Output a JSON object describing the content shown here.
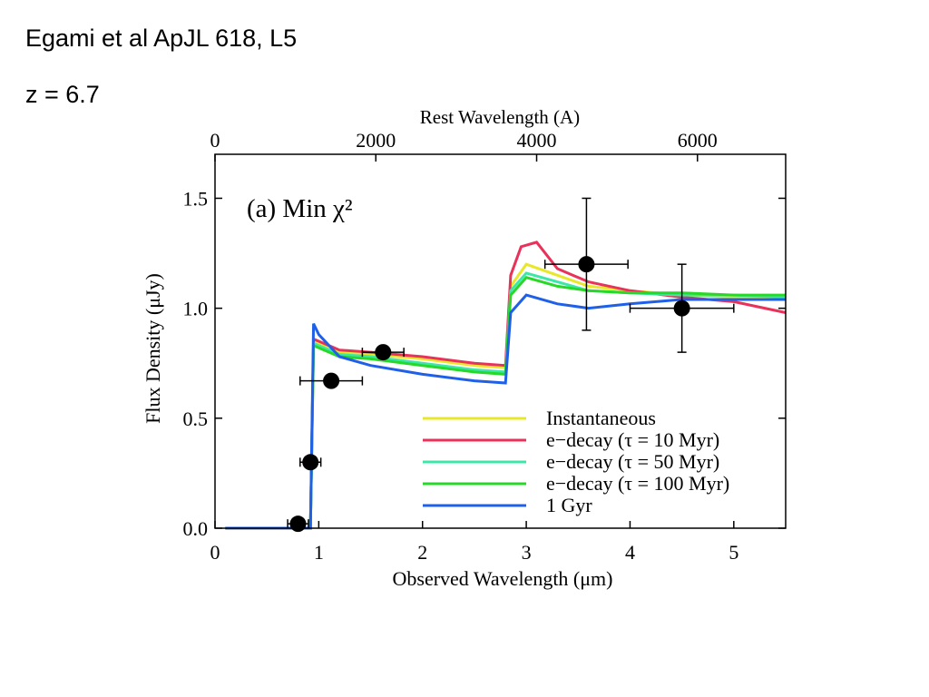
{
  "slide": {
    "reference": "Egami et al ApJL 618, L5",
    "redshift_label": "z = 6.7"
  },
  "chart_data": {
    "type": "line",
    "panel_label": "(a)  Min χ²",
    "xlabel": "Observed Wavelength (μm)",
    "ylabel": "Flux Density (μJy)",
    "top_xlabel": "Rest Wavelength (A)",
    "xlim": [
      0,
      5.5
    ],
    "ylim": [
      0,
      1.7
    ],
    "top_xlim": [
      0,
      7097
    ],
    "x_ticks": [
      0,
      1,
      2,
      3,
      4,
      5
    ],
    "y_ticks": [
      0.0,
      0.5,
      1.0,
      1.5
    ],
    "top_x_ticks": [
      0,
      2000,
      4000,
      6000
    ],
    "x_tick_labels": [
      "0",
      "1",
      "2",
      "3",
      "4",
      "5"
    ],
    "y_tick_labels": [
      "0.0",
      "0.5",
      "1.0",
      "1.5"
    ],
    "top_x_tick_labels": [
      "0",
      "2000",
      "4000",
      "6000"
    ],
    "legend_position": "lower-right",
    "colors": {
      "instantaneous": "#e8e82a",
      "decay10": "#e8325a",
      "decay50": "#3ce8a8",
      "decay100": "#28d828",
      "gyr1": "#2060e8"
    },
    "series": [
      {
        "name": "Instantaneous",
        "color": "#e8e82a",
        "x": [
          0.1,
          0.92,
          0.95,
          1.0,
          1.2,
          1.5,
          2.0,
          2.5,
          2.8,
          2.85,
          3.0,
          3.3,
          3.6,
          4.0,
          4.5,
          5.0,
          5.5
        ],
        "y": [
          0,
          0,
          0.85,
          0.84,
          0.8,
          0.79,
          0.77,
          0.74,
          0.73,
          1.1,
          1.2,
          1.15,
          1.1,
          1.08,
          1.06,
          1.05,
          1.04
        ]
      },
      {
        "name": "e−decay (τ = 10 Myr)",
        "color": "#e8325a",
        "x": [
          0.1,
          0.92,
          0.95,
          1.0,
          1.2,
          1.5,
          2.0,
          2.5,
          2.8,
          2.85,
          2.95,
          3.1,
          3.3,
          3.6,
          4.0,
          4.5,
          5.0,
          5.5
        ],
        "y": [
          0,
          0,
          0.86,
          0.85,
          0.81,
          0.8,
          0.78,
          0.75,
          0.74,
          1.15,
          1.28,
          1.3,
          1.18,
          1.12,
          1.08,
          1.05,
          1.03,
          0.98
        ]
      },
      {
        "name": "e−decay (τ = 50 Myr)",
        "color": "#3ce8a8",
        "x": [
          0.1,
          0.92,
          0.95,
          1.0,
          1.2,
          1.5,
          2.0,
          2.5,
          2.8,
          2.85,
          3.0,
          3.3,
          3.6,
          4.0,
          4.5,
          5.0,
          5.5
        ],
        "y": [
          0,
          0,
          0.84,
          0.83,
          0.79,
          0.78,
          0.75,
          0.72,
          0.71,
          1.08,
          1.16,
          1.12,
          1.08,
          1.07,
          1.06,
          1.06,
          1.05
        ]
      },
      {
        "name": "e−decay (τ = 100 Myr)",
        "color": "#28d828",
        "x": [
          0.1,
          0.92,
          0.95,
          1.0,
          1.2,
          1.5,
          2.0,
          2.5,
          2.8,
          2.85,
          3.0,
          3.3,
          3.6,
          4.0,
          4.5,
          5.0,
          5.5
        ],
        "y": [
          0,
          0,
          0.83,
          0.82,
          0.78,
          0.77,
          0.74,
          0.71,
          0.7,
          1.06,
          1.14,
          1.1,
          1.08,
          1.07,
          1.07,
          1.06,
          1.06
        ]
      },
      {
        "name": "1 Gyr",
        "color": "#2060e8",
        "x": [
          0.1,
          0.92,
          0.95,
          1.0,
          1.2,
          1.5,
          2.0,
          2.5,
          2.8,
          2.85,
          3.0,
          3.3,
          3.6,
          4.0,
          4.5,
          5.0,
          5.5
        ],
        "y": [
          0,
          0,
          0.93,
          0.88,
          0.78,
          0.74,
          0.7,
          0.67,
          0.66,
          0.98,
          1.06,
          1.02,
          1.0,
          1.02,
          1.04,
          1.04,
          1.04
        ]
      }
    ],
    "observed_points": [
      {
        "x": 0.8,
        "y": 0.02,
        "xerr": 0.1,
        "yerr": 0.0
      },
      {
        "x": 0.92,
        "y": 0.3,
        "xerr": 0.1,
        "yerr": 0.0
      },
      {
        "x": 1.12,
        "y": 0.67,
        "xerr": 0.3,
        "yerr": 0.0
      },
      {
        "x": 1.62,
        "y": 0.8,
        "xerr": 0.2,
        "yerr": 0.0
      },
      {
        "x": 3.58,
        "y": 1.2,
        "xerr": 0.4,
        "yerr": 0.3
      },
      {
        "x": 4.5,
        "y": 1.0,
        "xerr": 0.5,
        "yerr": 0.2
      }
    ]
  }
}
